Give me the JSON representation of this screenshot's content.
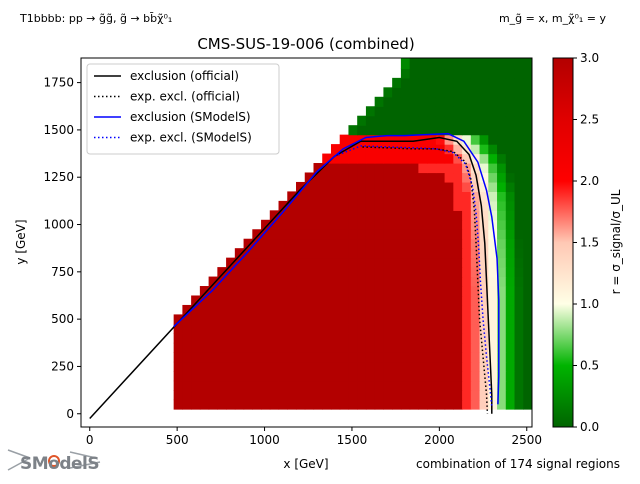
{
  "header": {
    "process": "T1bbbb: pp → g̃g̃, g̃ → bb̄χ̃⁰₁",
    "mass_relation": "m_g̃ = x, m_χ̃⁰₁ = y"
  },
  "footer": {
    "combination": "combination of 174 signal regions"
  },
  "logo": {
    "text": "SModelS"
  },
  "colors": {
    "dark_red": "#b30000",
    "red": "#ff0000",
    "pink": "#ffc8b4",
    "light_yellow": "#ffffe6",
    "light_green": "#a0ffa0",
    "green": "#00b400",
    "dark_green": "#006400",
    "official": "#000000",
    "smodels": "#0000ff"
  },
  "chart_data": {
    "type": "heatmap",
    "title": "CMS-SUS-19-006 (combined)",
    "xlabel": "x [GeV]",
    "ylabel": "y [GeV]",
    "xlim": [
      -50,
      2530
    ],
    "ylim": [
      -70,
      1880
    ],
    "xticks": [
      0,
      500,
      1000,
      1500,
      2000,
      2500
    ],
    "yticks": [
      0,
      250,
      500,
      750,
      1000,
      1250,
      1500,
      1750
    ],
    "colorbar": {
      "label": "r = σ_signal/σ_UL",
      "range": [
        0,
        3
      ],
      "ticks": [
        0.0,
        0.5,
        1.0,
        1.5,
        2.0,
        2.5,
        3.0
      ]
    },
    "legend": {
      "placement": "top-left",
      "entries": [
        {
          "label": "exclusion (official)",
          "color": "#000000",
          "style": "solid"
        },
        {
          "label": "exp. excl. (official)",
          "color": "#000000",
          "style": "dotted"
        },
        {
          "label": "exclusion (SModelS)",
          "color": "#0000ff",
          "style": "solid"
        },
        {
          "label": "exp. excl. (SModelS)",
          "color": "#0000ff",
          "style": "dotted"
        }
      ]
    },
    "series": [
      {
        "name": "exclusion (official)",
        "style": "solid",
        "color": "#000000",
        "points": [
          [
            0,
            -25
          ],
          [
            1200,
            1180
          ],
          [
            1400,
            1360
          ],
          [
            1550,
            1440
          ],
          [
            1700,
            1440
          ],
          [
            1850,
            1440
          ],
          [
            2000,
            1460
          ],
          [
            2100,
            1440
          ],
          [
            2170,
            1370
          ],
          [
            2210,
            1260
          ],
          [
            2240,
            1100
          ],
          [
            2260,
            900
          ],
          [
            2270,
            700
          ],
          [
            2280,
            500
          ],
          [
            2290,
            300
          ],
          [
            2300,
            100
          ],
          [
            2300,
            0
          ]
        ]
      },
      {
        "name": "exp. excl. (official)",
        "style": "dotted",
        "color": "#000000",
        "points": [
          [
            1560,
            1410
          ],
          [
            1700,
            1405
          ],
          [
            1850,
            1400
          ],
          [
            1980,
            1400
          ],
          [
            2080,
            1385
          ],
          [
            2150,
            1330
          ],
          [
            2180,
            1240
          ],
          [
            2200,
            1080
          ],
          [
            2210,
            900
          ],
          [
            2220,
            700
          ],
          [
            2230,
            500
          ],
          [
            2250,
            300
          ],
          [
            2270,
            100
          ],
          [
            2275,
            0
          ]
        ]
      },
      {
        "name": "exclusion (SModelS)",
        "style": "solid",
        "color": "#0000ff",
        "points": [
          [
            480,
            460
          ],
          [
            700,
            650
          ],
          [
            900,
            850
          ],
          [
            1100,
            1060
          ],
          [
            1300,
            1280
          ],
          [
            1450,
            1400
          ],
          [
            1580,
            1460
          ],
          [
            1700,
            1470
          ],
          [
            1800,
            1470
          ],
          [
            1920,
            1475
          ],
          [
            2050,
            1480
          ],
          [
            2140,
            1440
          ],
          [
            2220,
            1330
          ],
          [
            2270,
            1180
          ],
          [
            2300,
            1040
          ],
          [
            2330,
            820
          ],
          [
            2340,
            600
          ],
          [
            2340,
            400
          ],
          [
            2340,
            200
          ],
          [
            2335,
            50
          ]
        ]
      },
      {
        "name": "exp. excl. (SModelS)",
        "style": "dotted",
        "color": "#0000ff",
        "points": [
          [
            1400,
            1360
          ],
          [
            1550,
            1415
          ],
          [
            1700,
            1410
          ],
          [
            1850,
            1405
          ],
          [
            1980,
            1400
          ],
          [
            2080,
            1380
          ],
          [
            2150,
            1320
          ],
          [
            2190,
            1200
          ],
          [
            2210,
            1060
          ],
          [
            2225,
            880
          ],
          [
            2235,
            700
          ],
          [
            2250,
            500
          ],
          [
            2270,
            300
          ],
          [
            2290,
            130
          ],
          [
            2300,
            40
          ]
        ]
      }
    ],
    "regions": {
      "grid_x_min": 480,
      "grid_x_max": 2530,
      "grid_y_min": 25,
      "grid_y_max": 1880,
      "grid_step": 50,
      "upper_edge": [
        [
          500,
          500
        ],
        [
          1000,
          1000
        ],
        [
          1500,
          1500
        ],
        [
          1800,
          1800
        ],
        [
          1830,
          1880
        ]
      ],
      "contour_r1": [
        [
          1600,
          1475
        ],
        [
          1800,
          1470
        ],
        [
          2000,
          1490
        ],
        [
          2150,
          1450
        ],
        [
          2240,
          1330
        ],
        [
          2290,
          1150
        ],
        [
          2310,
          900
        ],
        [
          2320,
          650
        ],
        [
          2320,
          400
        ],
        [
          2320,
          150
        ],
        [
          2320,
          25
        ]
      ],
      "dark_red_boundary": [
        [
          1400,
          1310
        ],
        [
          1600,
          1320
        ],
        [
          1750,
          1320
        ],
        [
          1900,
          1300
        ],
        [
          2000,
          1260
        ],
        [
          2080,
          1180
        ],
        [
          2120,
          1050
        ],
        [
          2140,
          850
        ],
        [
          2150,
          650
        ],
        [
          2150,
          400
        ],
        [
          2150,
          25
        ]
      ]
    }
  }
}
